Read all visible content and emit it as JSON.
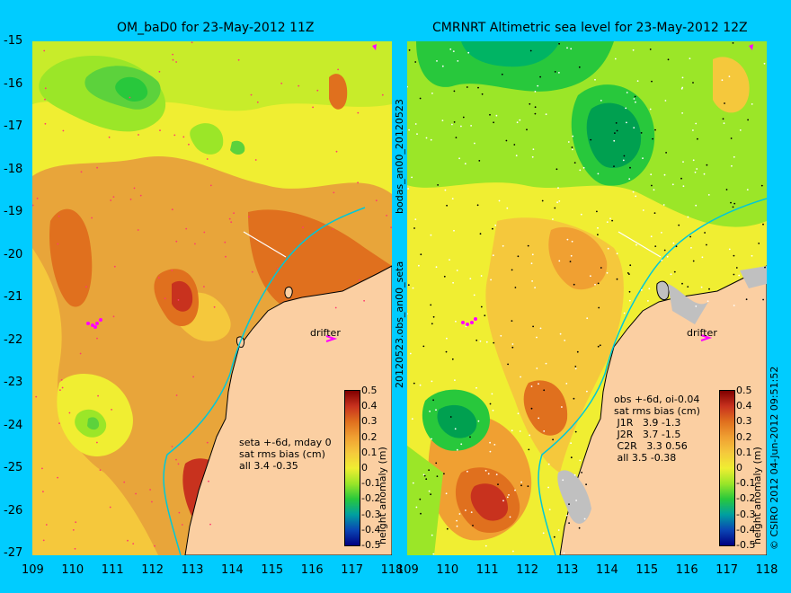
{
  "left_panel": {
    "title": "OM_baD0 for 23-May-2012 11Z",
    "annotation": "seta +-6d, mday 0\nsat rms bias (cm)\nall 3.4 -0.35",
    "drifter_label": "drifter",
    "colors": {
      "land": "#fbcfa2",
      "background": "#e8a53a",
      "coast_line": "#000000",
      "shelf_line": "#00c8d8"
    }
  },
  "right_panel": {
    "title": "CMRNRT Altimetric sea level  for 23-May-2012 12Z",
    "annotation": "obs +-6d, oi-0.04\nsat rms bias (cm)\n J1R   3.9 -1.3\n J2R   3.7 -1.5\n C2R   3.3 0.56\n all 3.5 -0.38",
    "drifter_label": "drifter"
  },
  "center_labels": {
    "top": "bodas_an00_20120523",
    "bottom": "20120523.obs_an00_seta"
  },
  "credit": "© CSIRO 2012  04-Jun-2012 09:51:52",
  "map": {
    "lon_ticks": [
      "109",
      "110",
      "111",
      "112",
      "113",
      "114",
      "115",
      "116",
      "117",
      "118"
    ],
    "lat_ticks": [
      "-15",
      "-16",
      "-17",
      "-18",
      "-19",
      "-20",
      "-21",
      "-22",
      "-23",
      "-24",
      "-25",
      "-26",
      "-27"
    ]
  },
  "colorbar": {
    "label": "height anomaly (m)",
    "ticks": [
      "0.5",
      "0.4",
      "0.3",
      "0.2",
      "0.1",
      "0",
      "-0.1",
      "-0.2",
      "-0.3",
      "-0.4",
      "-0.5"
    ]
  }
}
